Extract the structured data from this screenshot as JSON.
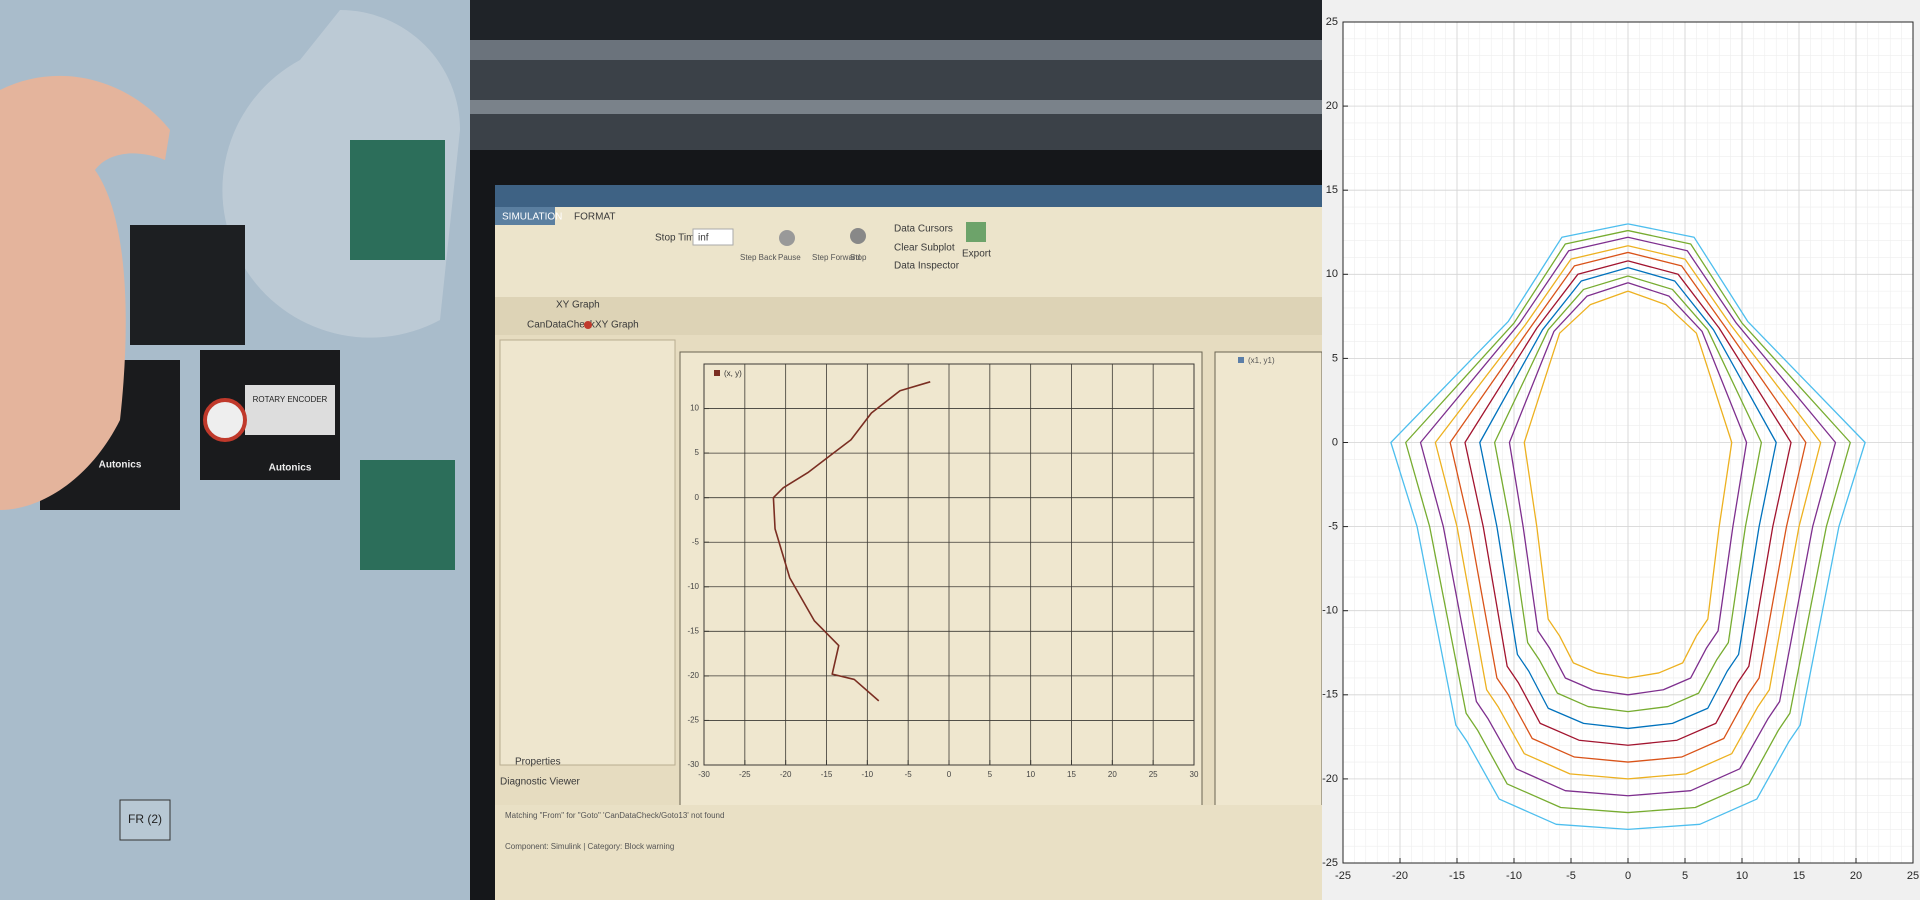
{
  "screen": {
    "tab_simulation": "SIMULATION",
    "tab_format": "FORMAT",
    "stop_time_label": "Stop Time",
    "stop_time_value": "inf",
    "step_back": "Step Back",
    "pause": "Pause",
    "step_forward": "Step Forward",
    "stop": "Stop",
    "data_cursors": "Data Cursors",
    "clear_subplot": "Clear Subplot",
    "data_inspector": "Data Inspector",
    "export": "Export",
    "tab_xy_graph": "XY Graph",
    "breadcrumb_model": "CanDataCheck",
    "breadcrumb_block": "XY Graph",
    "second_plot_legend": "(x1, y1)",
    "properties": "Properties",
    "diagnostic_viewer": "Diagnostic Viewer",
    "message": "Matching \"From\" for \"Goto\" 'CanDataCheck/Goto13' not found",
    "message_detail": "Component: Simulink | Category: Block warning",
    "encoder_label": "ROTARY ENCODER",
    "brand": "Autonics",
    "panel_tag": "FR (2)"
  },
  "chart_data": [
    {
      "type": "line",
      "xlim": [
        -30,
        30
      ],
      "ylim": [
        -30,
        15
      ],
      "xticks": [
        -30,
        -25,
        -20,
        -15,
        -10,
        -5,
        0,
        5,
        10,
        15,
        20,
        25,
        30
      ],
      "yticks": [
        -30,
        -25,
        -20,
        -15,
        -10,
        -5,
        0,
        5,
        10
      ],
      "grid": true,
      "series": [
        {
          "name": "(x, y)",
          "color": "#7a2e22",
          "x": [
            -2.3,
            -6,
            -9.5,
            -12,
            -14.3,
            -17.3,
            -20.3,
            -21.5,
            -21.3,
            -19.5,
            -16.5,
            -13.5,
            -14.3,
            -11.6,
            -8.6
          ],
          "y": [
            13,
            12,
            9.5,
            6.5,
            4.9,
            2.8,
            1.1,
            0,
            -3.5,
            -9,
            -13.8,
            -16.6,
            -19.8,
            -20.4,
            -22.8
          ]
        }
      ]
    },
    {
      "type": "line",
      "xlim": [
        -25,
        25
      ],
      "ylim": [
        -25,
        25
      ],
      "xticks": [
        -25,
        -20,
        -15,
        -10,
        -5,
        0,
        5,
        10,
        15,
        20,
        25
      ],
      "yticks": [
        -25,
        -20,
        -15,
        -10,
        -5,
        0,
        5,
        10,
        15,
        20,
        25
      ],
      "grid": true,
      "minor_grid": true,
      "series": [
        {
          "color": "#EDB120",
          "x": [
            0,
            3.3,
            6,
            9.1,
            8,
            7,
            6,
            4.8,
            2.7,
            0,
            -2.7,
            -4.8,
            -6,
            -7,
            -8,
            -9.1,
            -6,
            -3.3,
            0
          ],
          "y": [
            9,
            8.2,
            6.5,
            0,
            -5,
            -10.5,
            -11.5,
            -13.1,
            -13.7,
            -14,
            -13.7,
            -13.1,
            -11.5,
            -10.5,
            -5,
            0,
            6.5,
            8.2,
            9
          ]
        },
        {
          "color": "#7E2F8E",
          "x": [
            0,
            3.6,
            6.5,
            10.4,
            9.2,
            7.9,
            6.9,
            5.5,
            3.1,
            0,
            -3.1,
            -5.5,
            -6.9,
            -7.9,
            -9.2,
            -10.4,
            -6.5,
            -3.6,
            0
          ],
          "y": [
            9.5,
            8.7,
            6.6,
            0,
            -5,
            -11.2,
            -12.2,
            -14,
            -14.7,
            -15,
            -14.7,
            -14,
            -12.2,
            -11.2,
            -5,
            0,
            6.6,
            8.7,
            9.5
          ]
        },
        {
          "color": "#77AC30",
          "x": [
            0,
            3.9,
            7,
            11.7,
            10.3,
            8.8,
            7.8,
            6.2,
            3.5,
            0,
            -3.5,
            -6.2,
            -7.8,
            -8.8,
            -10.3,
            -11.7,
            -7,
            -3.9,
            0
          ],
          "y": [
            9.9,
            9.1,
            6.7,
            0,
            -5,
            -11.9,
            -12.9,
            -14.9,
            -15.7,
            -16,
            -15.7,
            -14.9,
            -12.9,
            -11.9,
            -5,
            0,
            6.7,
            9.1,
            9.9
          ]
        },
        {
          "color": "#0072BD",
          "x": [
            0,
            4.1,
            7.5,
            13,
            11.5,
            9.7,
            8.7,
            7,
            3.9,
            0,
            -3.9,
            -7,
            -8.7,
            -9.7,
            -11.5,
            -13,
            -7.5,
            -4.1,
            0
          ],
          "y": [
            10.4,
            9.6,
            6.7,
            0,
            -5,
            -12.6,
            -13.6,
            -15.8,
            -16.7,
            -17,
            -16.7,
            -15.8,
            -13.6,
            -12.6,
            -5,
            0,
            6.7,
            9.6,
            10.4
          ]
        },
        {
          "color": "#A2142F",
          "x": [
            0,
            4.4,
            8,
            14.3,
            12.7,
            10.6,
            9.6,
            7.7,
            4.3,
            0,
            -4.3,
            -7.7,
            -9.6,
            -10.6,
            -12.7,
            -14.3,
            -8,
            -4.4,
            0
          ],
          "y": [
            10.8,
            10,
            6.8,
            0,
            -5,
            -13.3,
            -14.3,
            -16.7,
            -17.7,
            -18,
            -17.7,
            -16.7,
            -14.3,
            -13.3,
            -5,
            0,
            6.8,
            10,
            10.8
          ]
        },
        {
          "color": "#D95319",
          "x": [
            0,
            4.7,
            8.5,
            15.6,
            13.9,
            11.5,
            10.5,
            8.4,
            4.7,
            0,
            -4.7,
            -8.4,
            -10.5,
            -11.5,
            -13.9,
            -15.6,
            -8.5,
            -4.7,
            0
          ],
          "y": [
            11.3,
            10.5,
            6.9,
            0,
            -5,
            -14,
            -15,
            -17.6,
            -18.7,
            -19,
            -18.7,
            -17.6,
            -15,
            -14,
            -5,
            0,
            6.9,
            10.5,
            11.3
          ]
        },
        {
          "color": "#EDB120",
          "x": [
            0,
            5,
            9,
            16.9,
            15,
            12.4,
            11.4,
            9.1,
            5.1,
            0,
            -5.1,
            -9.1,
            -11.4,
            -12.4,
            -15,
            -16.9,
            -9,
            -5,
            0
          ],
          "y": [
            11.7,
            10.9,
            7,
            0,
            -5,
            -14.7,
            -15.7,
            -18.5,
            -19.7,
            -20,
            -19.7,
            -18.5,
            -15.7,
            -14.7,
            -5,
            0,
            7,
            10.9,
            11.7
          ]
        },
        {
          "color": "#7E2F8E",
          "x": [
            0,
            5.2,
            9.5,
            18.2,
            16.2,
            13.3,
            12.3,
            9.8,
            5.5,
            0,
            -5.5,
            -9.8,
            -12.3,
            -13.3,
            -16.2,
            -18.2,
            -9.5,
            -5.2,
            0
          ],
          "y": [
            12.2,
            11.4,
            7.1,
            0,
            -5,
            -15.4,
            -16.4,
            -19.4,
            -20.7,
            -21,
            -20.7,
            -19.4,
            -16.4,
            -15.4,
            -5,
            0,
            7.1,
            11.4,
            12.2
          ]
        },
        {
          "color": "#77AC30",
          "x": [
            0,
            5.5,
            10,
            19.5,
            17.4,
            14.2,
            13.2,
            10.6,
            5.9,
            0,
            -5.9,
            -10.6,
            -13.2,
            -14.2,
            -17.4,
            -19.5,
            -10,
            -5.5,
            0
          ],
          "y": [
            12.6,
            11.8,
            7.1,
            0,
            -5,
            -16.1,
            -17.1,
            -20.3,
            -21.7,
            -22,
            -21.7,
            -20.3,
            -17.1,
            -16.1,
            -5,
            0,
            7.1,
            11.8,
            12.6
          ]
        },
        {
          "color": "#4DBEEE",
          "x": [
            0,
            5.8,
            10.5,
            20.8,
            18.5,
            15.1,
            14.1,
            11.3,
            6.3,
            0,
            -6.3,
            -11.3,
            -14.1,
            -15.1,
            -18.5,
            -20.8,
            -10.5,
            -5.8,
            0
          ],
          "y": [
            13,
            12.2,
            7.2,
            0,
            -5,
            -16.8,
            -17.8,
            -21.2,
            -22.7,
            -23,
            -22.7,
            -21.2,
            -17.8,
            -16.8,
            -5,
            0,
            7.2,
            12.2,
            13
          ]
        }
      ]
    }
  ]
}
